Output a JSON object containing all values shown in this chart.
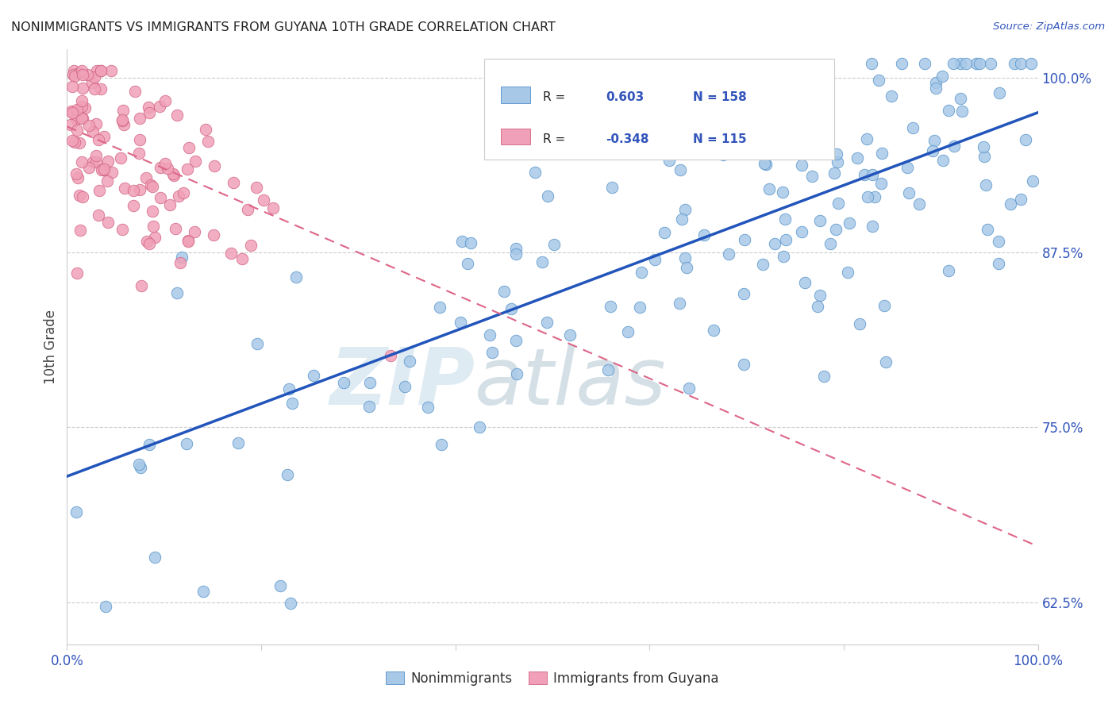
{
  "title": "NONIMMIGRANTS VS IMMIGRANTS FROM GUYANA 10TH GRADE CORRELATION CHART",
  "source_text": "Source: ZipAtlas.com",
  "ylabel": "10th Grade",
  "ytick_labels": [
    "62.5%",
    "75.0%",
    "87.5%",
    "100.0%"
  ],
  "ytick_values": [
    0.625,
    0.75,
    0.875,
    1.0
  ],
  "xlim": [
    0.0,
    1.0
  ],
  "ylim": [
    0.595,
    1.02
  ],
  "nonimmigrant_color": "#a8c8e8",
  "nonimmigrant_edge": "#5090c8",
  "immigrant_color": "#f0a0b8",
  "immigrant_edge": "#d06080",
  "trend_blue_color": "#2255bb",
  "trend_pink_color": "#dd6688",
  "blue_trend_x": [
    0.0,
    1.0
  ],
  "blue_trend_y": [
    0.715,
    0.975
  ],
  "pink_trend_x": [
    0.0,
    1.0
  ],
  "pink_trend_y": [
    0.965,
    0.665
  ],
  "watermark_zip": "ZIP",
  "watermark_atlas": "atlas",
  "background_color": "#ffffff",
  "grid_color": "#cccccc",
  "title_color": "#222222",
  "axis_label_color": "#3355bb",
  "seed": 99,
  "n_blue": 158,
  "n_pink": 115,
  "legend_r_blue": "0.603",
  "legend_n_blue": "158",
  "legend_r_pink": "-0.348",
  "legend_n_pink": "115"
}
